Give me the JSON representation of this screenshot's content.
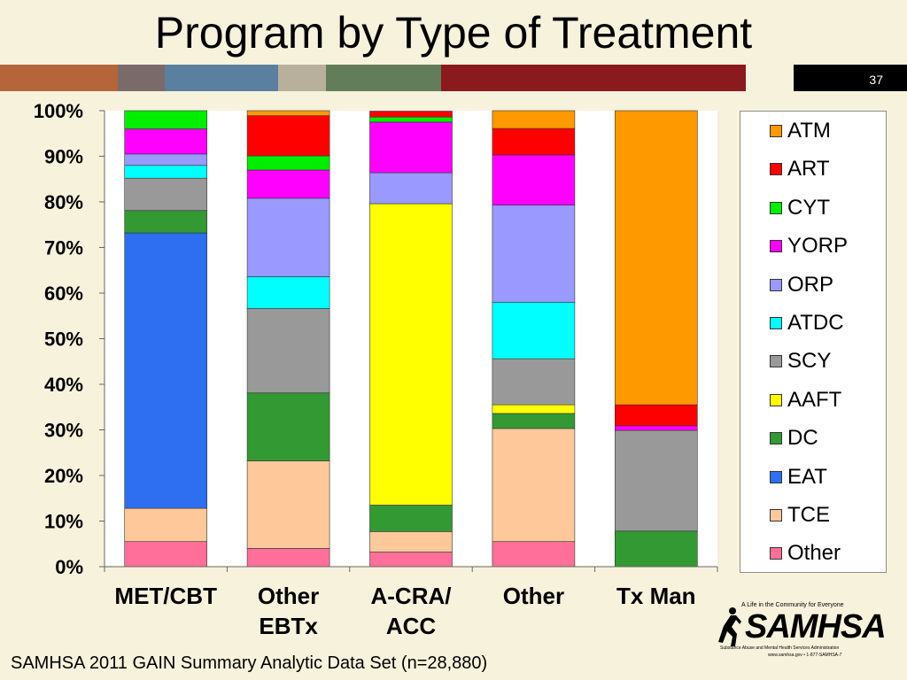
{
  "slide": {
    "title": "Program by Type of Treatment",
    "number": "37",
    "source": "SAMHSA 2011 GAIN Summary Analytic Data Set (n=28,880)",
    "band_colors": [
      "#b5653a",
      "#7a6a6a",
      "#5a7f9f",
      "#b8b09c",
      "#637c59",
      "#8a1a1e",
      "#8a1a1e",
      "#f7f2dc"
    ]
  },
  "logo": {
    "tagline": "A Life in the Community for Everyone",
    "name": "SAMHSA",
    "subtitle": "Substance Abuse and Mental Health Services Administration",
    "web": "www.samhsa.gov • 1-877-SAMHSA-7"
  },
  "chart_data": {
    "type": "bar",
    "stacked": true,
    "percent": true,
    "categories": [
      [
        "MET/CBT"
      ],
      [
        "Other",
        "EBTx"
      ],
      [
        "A-CRA/",
        "ACC"
      ],
      [
        "Other"
      ],
      [
        "Tx Man"
      ]
    ],
    "ylim": [
      0,
      100
    ],
    "yticks": [
      "0%",
      "10%",
      "20%",
      "30%",
      "40%",
      "50%",
      "60%",
      "70%",
      "80%",
      "90%",
      "100%"
    ],
    "legend_position": "right",
    "series": [
      {
        "name": "Other",
        "color": "#ff6f9a",
        "values": [
          5.5,
          4,
          3.2,
          5.5,
          0
        ]
      },
      {
        "name": "TCE",
        "color": "#ffc89a",
        "values": [
          7.3,
          19.2,
          4.5,
          24.8,
          0
        ]
      },
      {
        "name": "EAT",
        "color": "#2e6ef0",
        "values": [
          60.4,
          0,
          0,
          0,
          0
        ]
      },
      {
        "name": "DC",
        "color": "#339933",
        "values": [
          4.9,
          14.9,
          5.8,
          3.3,
          7.8
        ]
      },
      {
        "name": "AAFT",
        "color": "#ffff00",
        "values": [
          0,
          0,
          66.1,
          1.9,
          0
        ]
      },
      {
        "name": "SCY",
        "color": "#999999",
        "values": [
          7.1,
          18.5,
          0,
          10.1,
          22.1
        ]
      },
      {
        "name": "ATDC",
        "color": "#00ffff",
        "values": [
          2.8,
          7,
          0,
          12.4,
          0
        ]
      },
      {
        "name": "ORP",
        "color": "#9999ff",
        "values": [
          2.5,
          17.2,
          6.8,
          21.3,
          0
        ]
      },
      {
        "name": "YORP",
        "color": "#ff00ff",
        "values": [
          5.5,
          6.2,
          11.1,
          11,
          1
        ]
      },
      {
        "name": "CYT",
        "color": "#00ee00",
        "values": [
          4,
          3.1,
          1.1,
          0,
          0
        ]
      },
      {
        "name": "ART",
        "color": "#ff0000",
        "values": [
          0,
          8.8,
          1.3,
          5.8,
          4.6
        ]
      },
      {
        "name": "ATM",
        "color": "#ff9900",
        "values": [
          0,
          1.1,
          0,
          3.9,
          64.5
        ]
      }
    ]
  }
}
